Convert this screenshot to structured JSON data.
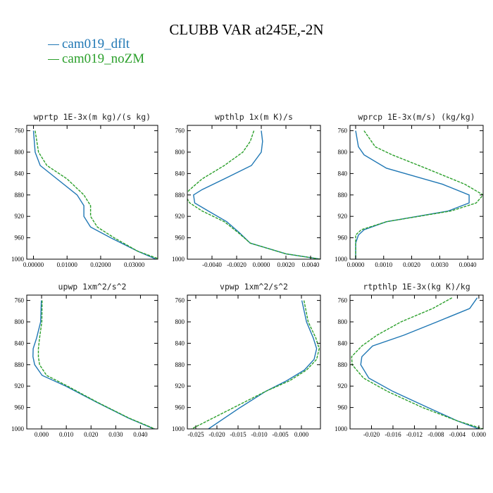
{
  "title": "CLUBB VAR at245E,-2N",
  "legend": [
    {
      "label": "cam019_dflt",
      "color": "#1f77b4"
    },
    {
      "label": "cam019_noZM",
      "color": "#2ca02c"
    }
  ],
  "chart_data": [
    {
      "type": "line",
      "title": "wprtp  1E-3x(m kg)/(s kg)",
      "xlim": [
        -2e-05,
        0.00037
      ],
      "ylim": [
        1000,
        750
      ],
      "x_ticks": [
        "0.00000",
        "0.01000",
        "0.02000",
        "0.03000"
      ],
      "x_tick_values": [
        0,
        0.0001,
        0.0002,
        0.0003
      ],
      "y_ticks": [
        "760",
        "800",
        "840",
        "880",
        "920",
        "960",
        "1000"
      ],
      "y_tick_values": [
        760,
        800,
        840,
        880,
        920,
        960,
        1000
      ],
      "series": [
        {
          "name": "cam019_dflt",
          "color": "#1f77b4",
          "y": [
            760,
            800,
            825,
            850,
            880,
            900,
            920,
            940,
            960,
            985,
            1000
          ],
          "x": [
            0,
            5e-06,
            2e-05,
            7e-05,
            0.00013,
            0.00015,
            0.00015,
            0.00017,
            0.00023,
            0.00031,
            0.000365
          ]
        },
        {
          "name": "cam019_noZM",
          "color": "#2ca02c",
          "y": [
            760,
            800,
            825,
            850,
            880,
            900,
            920,
            940,
            960,
            985,
            1000
          ],
          "x": [
            5e-06,
            1.5e-05,
            4e-05,
            0.0001,
            0.00015,
            0.00017,
            0.00017,
            0.00019,
            0.00024,
            0.00031,
            0.000375
          ]
        }
      ]
    },
    {
      "type": "line",
      "title": "wpthlp  1x(m K)/s",
      "xlim": [
        -0.006,
        0.0048
      ],
      "ylim": [
        1000,
        750
      ],
      "x_ticks": [
        "-0.0040",
        "-0.0020",
        "0.0000",
        "0.0020",
        "0.0040"
      ],
      "x_tick_values": [
        -0.004,
        -0.002,
        0,
        0.002,
        0.004
      ],
      "y_ticks": [
        "760",
        "800",
        "840",
        "880",
        "920",
        "960",
        "1000"
      ],
      "y_tick_values": [
        760,
        800,
        840,
        880,
        920,
        960,
        1000
      ],
      "series": [
        {
          "name": "cam019_dflt",
          "color": "#1f77b4",
          "y": [
            760,
            780,
            800,
            825,
            850,
            870,
            880,
            895,
            910,
            930,
            950,
            970,
            990,
            1000
          ],
          "x": [
            0,
            0.0001,
            0,
            -0.0008,
            -0.003,
            -0.0048,
            -0.0055,
            -0.0054,
            -0.0043,
            -0.0028,
            -0.0018,
            -0.0009,
            0.002,
            0.0048
          ]
        },
        {
          "name": "cam019_noZM",
          "color": "#2ca02c",
          "y": [
            760,
            780,
            800,
            825,
            850,
            870,
            880,
            895,
            910,
            930,
            950,
            970,
            990,
            1000
          ],
          "x": [
            -0.0006,
            -0.0009,
            -0.0015,
            -0.003,
            -0.0048,
            -0.0058,
            -0.0062,
            -0.0058,
            -0.0048,
            -0.003,
            -0.0019,
            -0.0009,
            0.002,
            0.0048
          ]
        }
      ]
    },
    {
      "type": "line",
      "title": "wprcp  1E-3x(m/s) (kg/kg)",
      "xlim": [
        -2e-05,
        0.000455
      ],
      "ylim": [
        1000,
        750
      ],
      "x_ticks": [
        "0.0000",
        "0.0010",
        "0.0020",
        "0.0030",
        "0.0040"
      ],
      "x_tick_values": [
        0,
        0.0001,
        0.0002,
        0.0003,
        0.0004
      ],
      "y_ticks": [
        "760",
        "800",
        "840",
        "880",
        "920",
        "960",
        "1000"
      ],
      "y_tick_values": [
        760,
        800,
        840,
        880,
        920,
        960,
        1000
      ],
      "series": [
        {
          "name": "cam019_dflt",
          "color": "#1f77b4",
          "y": [
            760,
            790,
            805,
            830,
            860,
            880,
            895,
            910,
            930,
            945,
            955,
            970,
            1000
          ],
          "x": [
            0,
            1e-05,
            3e-05,
            0.00011,
            0.00031,
            0.000405,
            0.000405,
            0.00033,
            0.00011,
            3e-05,
            1e-05,
            0,
            0
          ]
        },
        {
          "name": "cam019_noZM",
          "color": "#2ca02c",
          "y": [
            760,
            790,
            805,
            830,
            860,
            880,
            895,
            910,
            930,
            945,
            955,
            970,
            1000
          ],
          "x": [
            3e-05,
            7e-05,
            0.00013,
            0.00025,
            0.00039,
            0.000455,
            0.00043,
            0.00034,
            0.00011,
            2e-05,
            0,
            0,
            0
          ]
        }
      ]
    },
    {
      "type": "line",
      "title": "upwp  1xm^2/s^2",
      "xlim": [
        -0.006,
        0.047
      ],
      "ylim": [
        1000,
        750
      ],
      "x_ticks": [
        "0.000",
        "0.010",
        "0.020",
        "0.030",
        "0.040"
      ],
      "x_tick_values": [
        0,
        0.01,
        0.02,
        0.03,
        0.04
      ],
      "y_ticks": [
        "760",
        "800",
        "840",
        "880",
        "920",
        "960",
        "1000"
      ],
      "y_tick_values": [
        760,
        800,
        840,
        880,
        920,
        960,
        1000
      ],
      "series": [
        {
          "name": "cam019_dflt",
          "color": "#1f77b4",
          "y": [
            760,
            800,
            830,
            850,
            865,
            880,
            900,
            920,
            950,
            980,
            1000
          ],
          "x": [
            -0.0001,
            -0.0004,
            -0.002,
            -0.0034,
            -0.0035,
            -0.0028,
            0.0002,
            0.0098,
            0.0222,
            0.0352,
            0.0455
          ]
        },
        {
          "name": "cam019_noZM",
          "color": "#2ca02c",
          "y": [
            760,
            800,
            830,
            850,
            865,
            880,
            900,
            920,
            950,
            980,
            1000
          ],
          "x": [
            0.0002,
            0.0001,
            -0.0008,
            -0.0013,
            -0.0013,
            -0.0008,
            0.002,
            0.0105,
            0.0225,
            0.0355,
            0.0458
          ]
        }
      ]
    },
    {
      "type": "line",
      "title": "vpwp  1xm^2/s^2",
      "xlim": [
        -0.027,
        0.0045
      ],
      "ylim": [
        1000,
        750
      ],
      "x_ticks": [
        "-0.025",
        "-0.020",
        "-0.015",
        "-0.010",
        "-0.005",
        "0.000"
      ],
      "x_tick_values": [
        -0.025,
        -0.02,
        -0.015,
        -0.01,
        -0.005,
        0
      ],
      "y_ticks": [
        "760",
        "800",
        "840",
        "880",
        "920",
        "960",
        "1000"
      ],
      "y_tick_values": [
        760,
        800,
        840,
        880,
        920,
        960,
        1000
      ],
      "series": [
        {
          "name": "cam019_dflt",
          "color": "#1f77b4",
          "y": [
            760,
            800,
            830,
            850,
            870,
            890,
            910,
            930,
            960,
            1000
          ],
          "x": [
            0.0001,
            0.0012,
            0.0028,
            0.0036,
            0.003,
            0.0007,
            -0.0035,
            -0.0085,
            -0.0145,
            -0.022
          ]
        },
        {
          "name": "cam019_noZM",
          "color": "#2ca02c",
          "y": [
            760,
            800,
            830,
            850,
            870,
            890,
            910,
            930,
            960,
            1000
          ],
          "x": [
            0.0006,
            0.0016,
            0.0034,
            0.0042,
            0.0036,
            0.0012,
            -0.0028,
            -0.0085,
            -0.016,
            -0.026
          ]
        }
      ]
    },
    {
      "type": "line",
      "title": "rtpthlp  1E-3x(kg K)/kg",
      "xlim": [
        -0.0024,
        8e-05
      ],
      "ylim": [
        1000,
        750
      ],
      "x_ticks": [
        "-0.020",
        "-0.016",
        "-0.012",
        "-0.008",
        "-0.004",
        "0.000"
      ],
      "x_tick_values": [
        -0.002,
        -0.0016,
        -0.0012,
        -0.0008,
        -0.0004,
        0
      ],
      "y_ticks": [
        "760",
        "800",
        "840",
        "880",
        "920",
        "960",
        "1000"
      ],
      "y_tick_values": [
        760,
        800,
        840,
        880,
        920,
        960,
        1000
      ],
      "series": [
        {
          "name": "cam019_dflt",
          "color": "#1f77b4",
          "y": [
            755,
            775,
            800,
            825,
            845,
            865,
            880,
            905,
            930,
            960,
            985,
            1000
          ],
          "x": [
            -3e-05,
            -0.00017,
            -0.00078,
            -0.0014,
            -0.00198,
            -0.00218,
            -0.0022,
            -0.00205,
            -0.0016,
            -0.00095,
            -0.0004,
            0
          ]
        },
        {
          "name": "cam019_noZM",
          "color": "#2ca02c",
          "y": [
            755,
            775,
            800,
            825,
            845,
            865,
            880,
            905,
            930,
            960,
            985,
            1000
          ],
          "x": [
            -0.0005,
            -0.00086,
            -0.00145,
            -0.0019,
            -0.00218,
            -0.00237,
            -0.00236,
            -0.00215,
            -0.0017,
            -0.00105,
            -0.0004,
            8e-05
          ]
        }
      ]
    }
  ]
}
